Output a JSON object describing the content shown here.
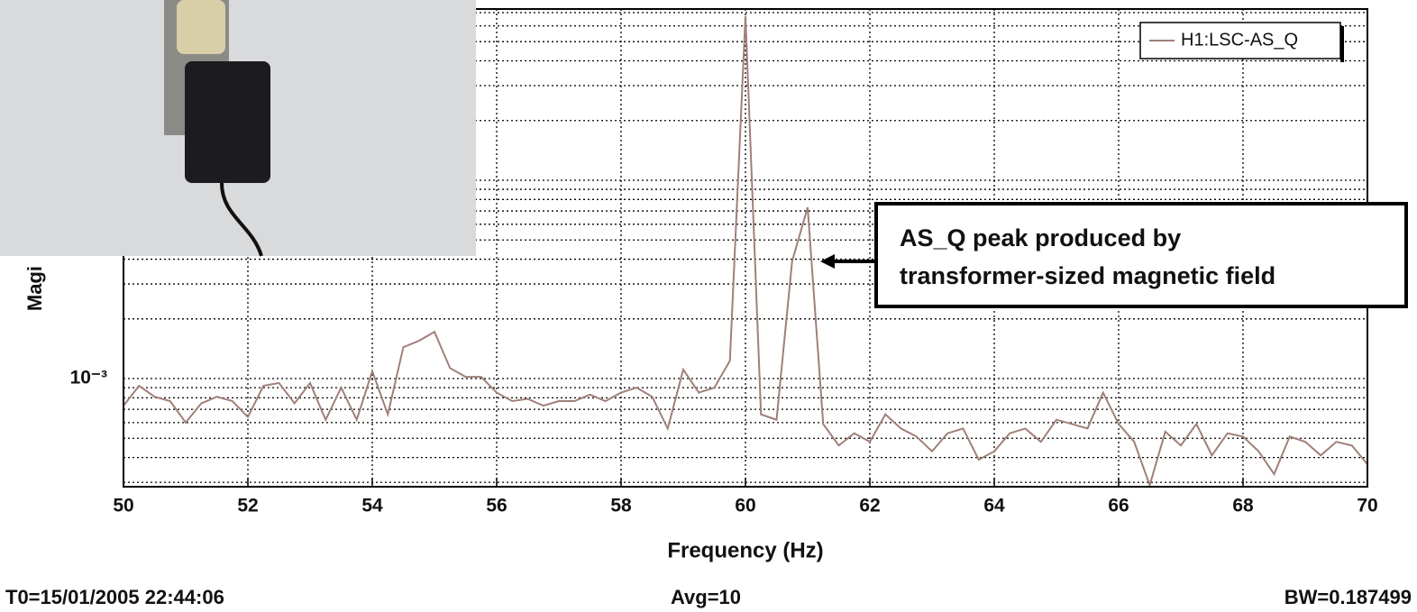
{
  "chart_data": {
    "type": "line",
    "ylabel": "Magi",
    "xlabel": "Frequency (Hz)",
    "xlim": [
      50,
      70
    ],
    "xticks": [
      50,
      52,
      54,
      56,
      58,
      60,
      62,
      64,
      66,
      68,
      70
    ],
    "ylim": [
      0.000285,
      0.073
    ],
    "ylog": true,
    "yticks": [
      {
        "value": 0.001,
        "label": "10⁻³"
      }
    ],
    "yminor": [
      0.0003,
      0.0004,
      0.0005,
      0.0006,
      0.0007,
      0.0008,
      0.0009,
      0.002,
      0.003,
      0.004,
      0.005,
      0.006,
      0.007,
      0.008,
      0.009,
      0.01,
      0.02,
      0.03,
      0.04,
      0.05,
      0.06,
      0.07
    ],
    "grid": true,
    "legend": "top-right",
    "x": [
      50,
      50.25,
      50.5,
      50.75,
      51,
      51.25,
      51.5,
      51.75,
      52,
      52.25,
      52.5,
      52.75,
      53,
      53.25,
      53.5,
      53.75,
      54,
      54.25,
      54.5,
      54.75,
      55,
      55.25,
      55.5,
      55.75,
      56,
      56.25,
      56.5,
      56.75,
      57,
      57.25,
      57.5,
      57.75,
      58,
      58.25,
      58.5,
      58.75,
      59,
      59.25,
      59.5,
      59.75,
      60,
      60.25,
      60.5,
      60.75,
      61,
      61.25,
      61.5,
      61.75,
      62,
      62.25,
      62.5,
      62.75,
      63,
      63.25,
      63.5,
      63.75,
      64,
      64.25,
      64.5,
      64.75,
      65,
      65.25,
      65.5,
      65.75,
      66,
      66.25,
      66.5,
      66.75,
      67,
      67.25,
      67.5,
      67.75,
      68,
      68.25,
      68.5,
      68.75,
      69,
      69.25,
      69.5,
      69.75,
      70
    ],
    "series": [
      {
        "name": "H1:LSC-AS_Q",
        "color": "#a08078",
        "values": [
          0.00073,
          0.00092,
          0.00081,
          0.00077,
          0.0006,
          0.00075,
          0.00081,
          0.00077,
          0.00064,
          0.00092,
          0.00095,
          0.00075,
          0.00095,
          0.00062,
          0.0009,
          0.00062,
          0.00109,
          0.00066,
          0.00144,
          0.00155,
          0.00172,
          0.00113,
          0.00102,
          0.00102,
          0.00085,
          0.00077,
          0.00079,
          0.00073,
          0.00077,
          0.00077,
          0.00083,
          0.00077,
          0.00085,
          0.0009,
          0.00081,
          0.00056,
          0.00111,
          0.00085,
          0.0009,
          0.00123,
          0.0672,
          0.00066,
          0.00062,
          0.0039,
          0.0073,
          0.00059,
          0.00046,
          0.00053,
          0.00048,
          0.00066,
          0.00056,
          0.00051,
          0.00043,
          0.00053,
          0.00056,
          0.00039,
          0.00043,
          0.00053,
          0.00056,
          0.00048,
          0.00062,
          0.00059,
          0.00056,
          0.00085,
          0.00059,
          0.00048,
          0.00029,
          0.00054,
          0.00046,
          0.00059,
          0.00041,
          0.00053,
          0.00051,
          0.00043,
          0.00033,
          0.00051,
          0.00048,
          0.00041,
          0.00048,
          0.00046,
          0.00037
        ]
      }
    ],
    "annotation": [
      "AS_Q peak produced by",
      "transformer-sized magnetic field"
    ],
    "footer": [
      "T0=15/01/2005 22:44:06",
      "Avg=10",
      "BW=0.187499"
    ]
  }
}
